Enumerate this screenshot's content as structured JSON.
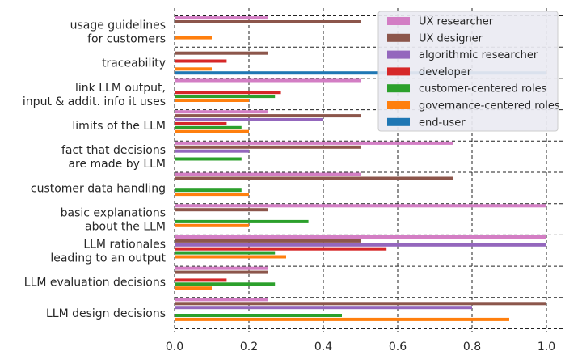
{
  "chart_data": {
    "type": "bar",
    "orientation": "horizontal",
    "title": "",
    "xlabel": "",
    "ylabel": "",
    "xlim": [
      0,
      1.05
    ],
    "xticks": [
      "0.0",
      "0.2",
      "0.4",
      "0.6",
      "0.8",
      "1.0"
    ],
    "grid": "dashed",
    "legend_position": "top-right",
    "categories": [
      [
        "usage guidelines",
        "for customers"
      ],
      [
        "traceability"
      ],
      [
        "link LLM output,",
        "input & addit. info it uses"
      ],
      [
        "limits of the LLM"
      ],
      [
        "fact that decisions",
        "are made by LLM"
      ],
      [
        "customer data handling"
      ],
      [
        "basic explanations",
        "about the LLM"
      ],
      [
        "LLM rationales",
        "leading to an output"
      ],
      [
        "LLM evaluation decisions"
      ],
      [
        "LLM design decisions"
      ]
    ],
    "series": [
      {
        "name": "UX researcher",
        "color": "#d37ec4",
        "values": [
          0.25,
          0.0,
          0.5,
          0.25,
          0.75,
          0.5,
          1.0,
          1.0,
          0.25,
          0.25
        ]
      },
      {
        "name": "UX designer",
        "color": "#8c564b",
        "values": [
          0.5,
          0.25,
          0.0,
          0.5,
          0.5,
          0.75,
          0.25,
          0.5,
          0.25,
          1.0
        ]
      },
      {
        "name": "algorithmic researcher",
        "color": "#9467bd",
        "values": [
          0.0,
          0.0,
          0.0,
          0.4,
          0.2,
          0.0,
          0.0,
          1.0,
          0.0,
          0.8
        ]
      },
      {
        "name": "developer",
        "color": "#d62728",
        "values": [
          0.0,
          0.14,
          0.286,
          0.14,
          0.0,
          0.0,
          0.0,
          0.57,
          0.14,
          0.0
        ]
      },
      {
        "name": "customer-centered roles",
        "color": "#2ca02c",
        "values": [
          0.0,
          0.0,
          0.27,
          0.18,
          0.18,
          0.18,
          0.36,
          0.27,
          0.27,
          0.45
        ]
      },
      {
        "name": "governance-centered roles",
        "color": "#ff7f0e",
        "values": [
          0.1,
          0.1,
          0.2,
          0.2,
          0.0,
          0.2,
          0.2,
          0.3,
          0.1,
          0.9
        ]
      },
      {
        "name": "end-user",
        "color": "#1f77b4",
        "values": [
          0.0,
          1.0,
          0.0,
          0.0,
          0.0,
          0.0,
          0.0,
          0.0,
          0.0,
          0.0
        ]
      }
    ]
  }
}
